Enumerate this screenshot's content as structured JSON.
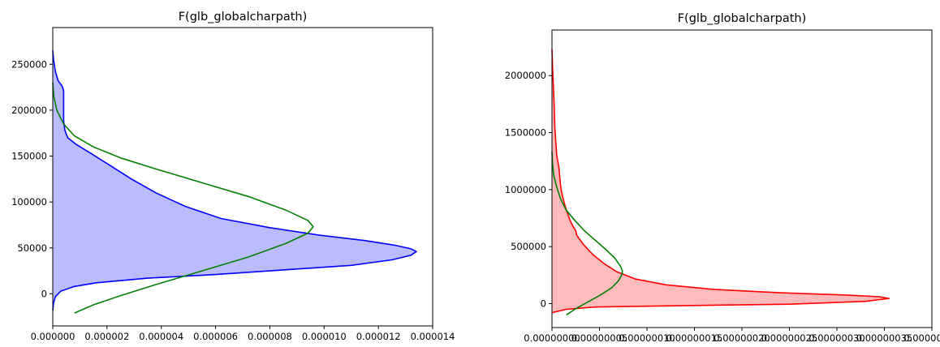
{
  "chart_data": [
    {
      "type": "area",
      "title": "F(glb_globalcharpath)",
      "orientation": "horizontal-density",
      "xlim": [
        0,
        1.4e-05
      ],
      "ylim": [
        -35000,
        290000
      ],
      "x_ticks": [
        0,
        2e-06,
        4e-06,
        6e-06,
        8e-06,
        1e-05,
        1.2e-05,
        1.4e-05
      ],
      "x_tick_labels": [
        "0.000000",
        "0.000002",
        "0.000004",
        "0.000006",
        "0.000008",
        "0.000010",
        "0.000012",
        "0.000014"
      ],
      "y_ticks": [
        0,
        50000,
        100000,
        150000,
        200000,
        250000
      ],
      "y_tick_labels": [
        "0",
        "50000",
        "100000",
        "150000",
        "200000",
        "250000"
      ],
      "grid": false,
      "series": [
        {
          "style": "filled-density",
          "color": "#0000ff",
          "fill": "#bbbbff",
          "points": [
            [
              0,
              -18000
            ],
            [
              3e-08,
              -10000
            ],
            [
              1e-07,
              -3000
            ],
            [
              3e-07,
              3000
            ],
            [
              8e-07,
              8000
            ],
            [
              1.6e-06,
              12000
            ],
            [
              3.5e-06,
              17000
            ],
            [
              6e-06,
              21000
            ],
            [
              8.5e-06,
              26000
            ],
            [
              1.1e-05,
              31000
            ],
            [
              1.25e-05,
              37000
            ],
            [
              1.32e-05,
              42000
            ],
            [
              1.34e-05,
              46000
            ],
            [
              1.32e-05,
              49000
            ],
            [
              1.26e-05,
              53000
            ],
            [
              1.15e-05,
              58000
            ],
            [
              9.8e-06,
              64000
            ],
            [
              8e-06,
              72000
            ],
            [
              6.2e-06,
              82000
            ],
            [
              4.9e-06,
              95000
            ],
            [
              3.8e-06,
              110000
            ],
            [
              2.9e-06,
              125000
            ],
            [
              2.1e-06,
              140000
            ],
            [
              1.4e-06,
              153000
            ],
            [
              8.5e-07,
              163000
            ],
            [
              5.5e-07,
              170000
            ],
            [
              4.5e-07,
              178000
            ],
            [
              4e-07,
              188000
            ],
            [
              4e-07,
              200000
            ],
            [
              4e-07,
              213000
            ],
            [
              4e-07,
              221000
            ],
            [
              3.5e-07,
              226000
            ],
            [
              2e-07,
              232000
            ],
            [
              1e-07,
              242000
            ],
            [
              3e-08,
              255000
            ],
            [
              0,
              265000
            ]
          ]
        },
        {
          "style": "normal-fit",
          "color": "#008000",
          "points": [
            [
              8e-07,
              -21000
            ],
            [
              1.5e-06,
              -12000
            ],
            [
              2.5e-06,
              -2000
            ],
            [
              3.8e-06,
              10000
            ],
            [
              5.5e-06,
              25000
            ],
            [
              7.2e-06,
              40000
            ],
            [
              8.6e-06,
              55000
            ],
            [
              9.4e-06,
              66000
            ],
            [
              9.6e-06,
              73000
            ],
            [
              9.4e-06,
              80000
            ],
            [
              8.6e-06,
              91000
            ],
            [
              7.2e-06,
              106000
            ],
            [
              5.5e-06,
              121000
            ],
            [
              3.8e-06,
              136000
            ],
            [
              2.5e-06,
              148000
            ],
            [
              1.5e-06,
              160000
            ],
            [
              8e-07,
              172000
            ],
            [
              4e-07,
              185000
            ],
            [
              1.5e-07,
              200000
            ],
            [
              4e-08,
              215000
            ],
            [
              0,
              230000
            ]
          ]
        }
      ]
    },
    {
      "type": "area",
      "title": "F(glb_globalcharpath)",
      "orientation": "horizontal-density",
      "xlim": [
        0,
        4e-07
      ],
      "ylim": [
        -210000,
        2400000
      ],
      "x_ticks": [
        0,
        5e-08,
        1e-07,
        1.5e-07,
        2e-07,
        2.5e-07,
        3e-07,
        3.5e-07,
        4e-07
      ],
      "x_tick_labels": [
        "0.00000000",
        "0.00000005",
        "0.00000010",
        "0.00000015",
        "0.00000020",
        "0.00000025",
        "0.00000030",
        "0.00000035",
        "0.00000040"
      ],
      "y_ticks": [
        0,
        500000,
        1000000,
        1500000,
        2000000
      ],
      "y_tick_labels": [
        "0",
        "500000",
        "1000000",
        "1500000",
        "2000000"
      ],
      "grid": false,
      "series": [
        {
          "style": "filled-density",
          "color": "#ff0000",
          "fill": "#ffbbbb",
          "points": [
            [
              0,
              -80000
            ],
            [
              1.5e-08,
              -50000
            ],
            [
              4.5e-08,
              -30000
            ],
            [
              1.2e-07,
              -20000
            ],
            [
              2.5e-07,
              -5000
            ],
            [
              3.3e-07,
              20000
            ],
            [
              3.55e-07,
              45000
            ],
            [
              3.45e-07,
              60000
            ],
            [
              3.1e-07,
              75000
            ],
            [
              2.4e-07,
              95000
            ],
            [
              1.7e-07,
              125000
            ],
            [
              1.2e-07,
              165000
            ],
            [
              8.8e-08,
              215000
            ],
            [
              6.8e-08,
              280000
            ],
            [
              5.5e-08,
              350000
            ],
            [
              4.3e-08,
              430000
            ],
            [
              3.3e-08,
              520000
            ],
            [
              2.6e-08,
              600000
            ],
            [
              2.5e-08,
              640000
            ],
            [
              2.2e-08,
              680000
            ],
            [
              1.9e-08,
              730000
            ],
            [
              1.6e-08,
              800000
            ],
            [
              1.3e-08,
              880000
            ],
            [
              1e-08,
              980000
            ],
            [
              8.5e-09,
              1080000
            ],
            [
              7.5e-09,
              1180000
            ],
            [
              5e-09,
              1300000
            ],
            [
              4e-09,
              1420000
            ],
            [
              3e-09,
              1550000
            ],
            [
              2.5e-09,
              1700000
            ],
            [
              1.5e-09,
              1900000
            ],
            [
              5e-10,
              2100000
            ],
            [
              0,
              2230000
            ]
          ]
        },
        {
          "style": "normal-fit",
          "color": "#008000",
          "points": [
            [
              1.5e-08,
              -100000
            ],
            [
              2.6e-08,
              -40000
            ],
            [
              3.9e-08,
              20000
            ],
            [
              5.2e-08,
              80000
            ],
            [
              6.3e-08,
              140000
            ],
            [
              7e-08,
              200000
            ],
            [
              7.4e-08,
              260000
            ],
            [
              7.4e-08,
              290000
            ],
            [
              7.2e-08,
              330000
            ],
            [
              6.6e-08,
              400000
            ],
            [
              5.6e-08,
              480000
            ],
            [
              4.5e-08,
              560000
            ],
            [
              3.4e-08,
              640000
            ],
            [
              2.4e-08,
              730000
            ],
            [
              1.5e-08,
              820000
            ],
            [
              9e-09,
              920000
            ],
            [
              5e-09,
              1020000
            ],
            [
              2e-09,
              1120000
            ],
            [
              6e-10,
              1220000
            ],
            [
              0,
              1330000
            ]
          ]
        }
      ]
    }
  ]
}
